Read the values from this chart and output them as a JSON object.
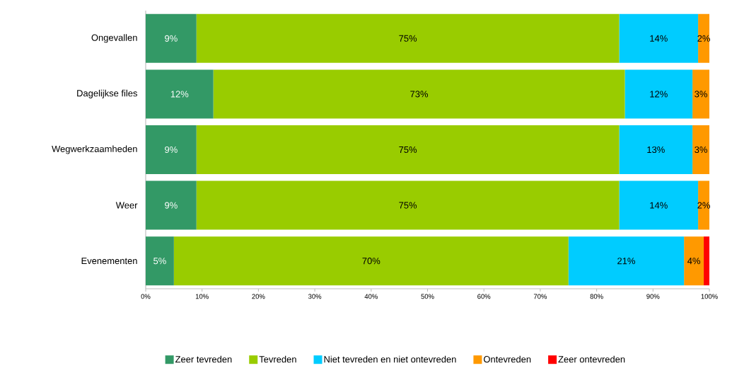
{
  "chart_data": {
    "type": "bar",
    "orientation": "horizontal",
    "stacked": true,
    "legend": "bottom",
    "categories": [
      "Ongevallen",
      "Dagelijkse files",
      "Wegwerkzaamheden",
      "Weer",
      "Evenementen"
    ],
    "series": [
      {
        "name": "Zeer tevreden",
        "color": "#339966",
        "values": [
          9,
          12,
          9,
          9,
          5
        ],
        "value_labels": [
          "9%",
          "12%",
          "9%",
          "9%",
          "5%"
        ]
      },
      {
        "name": "Tevreden",
        "color": "#99cc00",
        "values": [
          75,
          73,
          75,
          75,
          70
        ],
        "value_labels": [
          "75%",
          "73%",
          "75%",
          "75%",
          "70%"
        ]
      },
      {
        "name": "Niet tevreden en niet ontevreden",
        "color": "#00ccff",
        "values": [
          14,
          12,
          13,
          14,
          20.5
        ],
        "value_labels": [
          "14%",
          "12%",
          "13%",
          "14%",
          "21%"
        ]
      },
      {
        "name": "Ontevreden",
        "color": "#ff9900",
        "values": [
          2,
          3,
          3,
          2,
          3.5
        ],
        "value_labels": [
          "2%",
          "3%",
          "3%",
          "2%",
          "4%"
        ]
      },
      {
        "name": "Zeer ontevreden",
        "color": "#ff0000",
        "values": [
          null,
          null,
          null,
          null,
          1
        ],
        "value_labels": [
          null,
          null,
          null,
          null,
          null
        ]
      }
    ],
    "xlim": [
      0,
      100
    ],
    "xticks": [
      {
        "value": 0,
        "label": "0%"
      },
      {
        "value": 10,
        "label": "10%"
      },
      {
        "value": 20,
        "label": "20%"
      },
      {
        "value": 30,
        "label": "30%"
      },
      {
        "value": 40,
        "label": "40%"
      },
      {
        "value": 50,
        "label": "50%"
      },
      {
        "value": 60,
        "label": "60%"
      },
      {
        "value": 70,
        "label": "70%"
      },
      {
        "value": 80,
        "label": "80%"
      },
      {
        "value": 90,
        "label": "90%"
      },
      {
        "value": 100,
        "label": "100%"
      }
    ]
  }
}
